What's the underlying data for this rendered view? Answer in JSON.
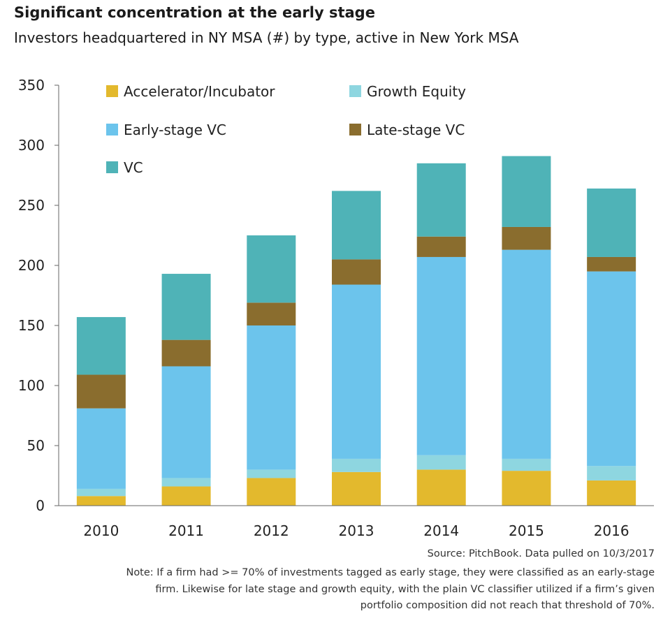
{
  "title": "Significant concentration at the early stage",
  "subtitle": "Investors headquartered in NY MSA (#) by type, active in New York MSA",
  "source": "Source: PitchBook. Data pulled on 10/3/2017",
  "note_lines": [
    "Note: If a firm had >= 70% of investments tagged as early stage, they were classified as an early-stage",
    "firm. Likewise for late stage and growth equity, with the plain VC classifier utilized if a firm’s given",
    "portfolio composition did not reach that threshold of 70%."
  ],
  "colors": {
    "accelerator": "#E3B92D",
    "growth_equity": "#8ED6E0",
    "early_vc": "#6CC4EC",
    "late_vc": "#8A6D2E",
    "vc": "#4FB3B7",
    "axis": "#666666"
  },
  "chart_data": {
    "type": "bar",
    "stacked": true,
    "categories": [
      "2010",
      "2011",
      "2012",
      "2013",
      "2014",
      "2015",
      "2016"
    ],
    "series": [
      {
        "name": "Accelerator/Incubator",
        "color": "#E3B92D",
        "values": [
          8,
          16,
          23,
          28,
          30,
          29,
          21
        ]
      },
      {
        "name": "Growth Equity",
        "color": "#8ED6E0",
        "values": [
          6,
          7,
          7,
          11,
          12,
          10,
          12
        ]
      },
      {
        "name": "Early-stage VC",
        "color": "#6CC4EC",
        "values": [
          67,
          93,
          120,
          145,
          165,
          174,
          162
        ]
      },
      {
        "name": "Late-stage VC",
        "color": "#8A6D2E",
        "values": [
          28,
          22,
          19,
          21,
          17,
          19,
          12
        ]
      },
      {
        "name": "VC",
        "color": "#4FB3B7",
        "values": [
          48,
          55,
          56,
          57,
          61,
          59,
          57
        ]
      }
    ],
    "legend_order": [
      "Accelerator/Incubator",
      "Growth Equity",
      "Early-stage VC",
      "Late-stage VC",
      "VC"
    ],
    "legend_position": "top-left",
    "yticks": [
      0,
      50,
      100,
      150,
      200,
      250,
      300,
      350
    ],
    "ylim": [
      0,
      350
    ],
    "grid": false
  }
}
